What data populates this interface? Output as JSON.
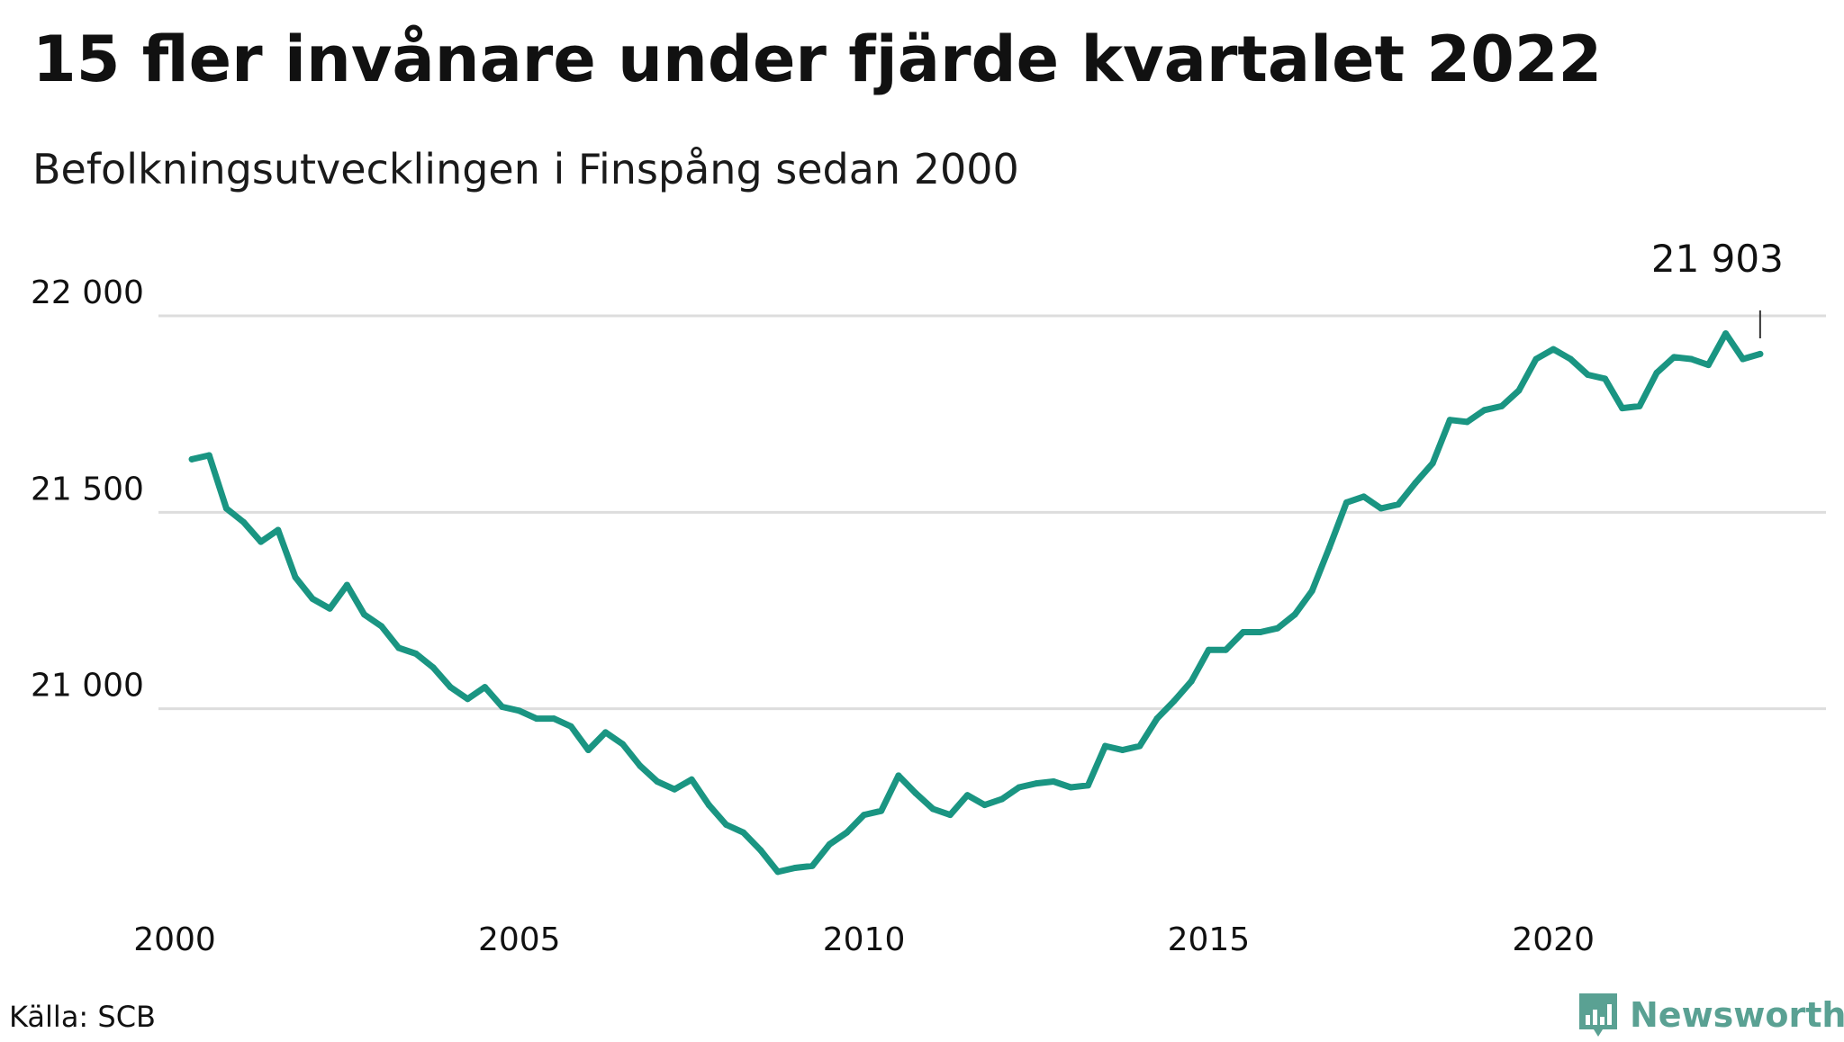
{
  "header": {
    "title": "15 fler invånare under fjärde kvartalet 2022",
    "subtitle": "Befolkningsutvecklingen i Finspång sedan 2000"
  },
  "footer": {
    "source": "Källa: SCB",
    "brand": "Newsworthy",
    "brand_icon": "bar-chart-badge-icon",
    "brand_color": "#5aa193"
  },
  "colors": {
    "line": "#1a9582",
    "grid": "#dddddd",
    "text": "#111111"
  },
  "chart_data": {
    "type": "line",
    "title": "15 fler invånare under fjärde kvartalet 2022",
    "subtitle": "Befolkningsutvecklingen i Finspång sedan 2000",
    "xlabel": "",
    "ylabel": "",
    "xlim": [
      2000.0,
      2023.25
    ],
    "ylim": [
      20500,
      22000
    ],
    "grid": true,
    "legend": "none",
    "x_ticks": [
      {
        "value": 2000,
        "label": "2000"
      },
      {
        "value": 2005,
        "label": "2005"
      },
      {
        "value": 2010,
        "label": "2010"
      },
      {
        "value": 2015,
        "label": "2015"
      },
      {
        "value": 2020,
        "label": "2020"
      }
    ],
    "y_ticks": [
      {
        "value": 21000,
        "label": "21 000"
      },
      {
        "value": 21500,
        "label": "21 500"
      },
      {
        "value": 22000,
        "label": "22 000"
      }
    ],
    "annotation": {
      "x": 2023.0,
      "y": 21903,
      "label": "21 903"
    },
    "series": [
      {
        "x": [
          2000.25,
          2000.5,
          2000.75,
          2001.0,
          2001.25,
          2001.5,
          2001.75,
          2002.0,
          2002.25,
          2002.5,
          2002.75,
          2003.0,
          2003.25,
          2003.5,
          2003.75,
          2004.0,
          2004.25,
          2004.5,
          2004.75,
          2005.0,
          2005.25,
          2005.5,
          2005.75,
          2006.0,
          2006.25,
          2006.5,
          2006.75,
          2007.0,
          2007.25,
          2007.5,
          2007.75,
          2008.0,
          2008.25,
          2008.5,
          2008.75,
          2009.0,
          2009.25,
          2009.5,
          2009.75,
          2010.0,
          2010.25,
          2010.5,
          2010.75,
          2011.0,
          2011.25,
          2011.5,
          2011.75,
          2012.0,
          2012.25,
          2012.5,
          2012.75,
          2013.0,
          2013.25,
          2013.5,
          2013.75,
          2014.0,
          2014.25,
          2014.5,
          2014.75,
          2015.0,
          2015.25,
          2015.5,
          2015.75,
          2016.0,
          2016.25,
          2016.5,
          2016.75,
          2017.0,
          2017.25,
          2017.5,
          2017.75,
          2018.0,
          2018.25,
          2018.5,
          2018.75,
          2019.0,
          2019.25,
          2019.5,
          2019.75,
          2020.0,
          2020.25,
          2020.5,
          2020.75,
          2021.0,
          2021.25,
          2021.5,
          2021.75,
          2022.0,
          2022.25,
          2022.5,
          2022.75,
          2023.0
        ],
        "values": [
          21635,
          21645,
          21510,
          21475,
          21425,
          21455,
          21335,
          21280,
          21255,
          21315,
          21240,
          21210,
          21155,
          21140,
          21105,
          21055,
          21025,
          21055,
          21005,
          20995,
          20975,
          20975,
          20955,
          20895,
          20940,
          20910,
          20855,
          20815,
          20795,
          20820,
          20755,
          20705,
          20685,
          20640,
          20585,
          20595,
          20600,
          20655,
          20685,
          20730,
          20740,
          20830,
          20785,
          20745,
          20730,
          20780,
          20755,
          20770,
          20800,
          20810,
          20815,
          20800,
          20805,
          20905,
          20895,
          20905,
          20975,
          21020,
          21070,
          21150,
          21150,
          21195,
          21195,
          21205,
          21240,
          21300,
          21410,
          21525,
          21540,
          21510,
          21520,
          21575,
          21625,
          21735,
          21730,
          21760,
          21770,
          21810,
          21890,
          21915,
          21890,
          21850,
          21840,
          21765,
          21770,
          21855,
          21895,
          21890,
          21875,
          21955,
          21890,
          21903
        ]
      }
    ]
  }
}
